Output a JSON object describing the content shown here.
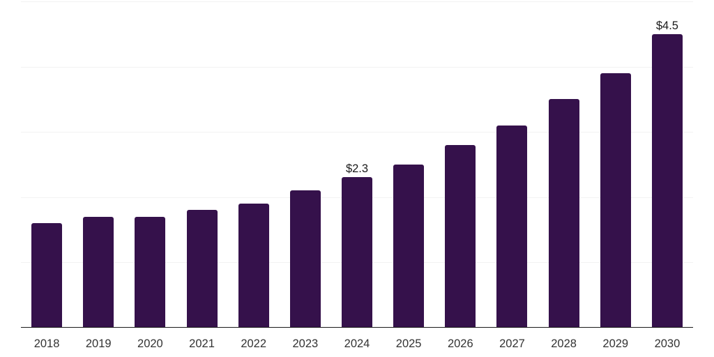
{
  "chart_data": {
    "type": "bar",
    "title": "",
    "xlabel": "",
    "ylabel": "",
    "categories": [
      "2018",
      "2019",
      "2020",
      "2021",
      "2022",
      "2023",
      "2024",
      "2025",
      "2026",
      "2027",
      "2028",
      "2029",
      "2030"
    ],
    "values": [
      1.6,
      1.7,
      1.7,
      1.8,
      1.9,
      2.1,
      2.3,
      2.5,
      2.8,
      3.1,
      3.5,
      3.9,
      4.5
    ],
    "annotations": [
      {
        "category": "2024",
        "text": "$2.3"
      },
      {
        "category": "2030",
        "text": "$4.5"
      }
    ],
    "ylim": [
      0,
      5
    ],
    "gridline_step": 1,
    "grid": true,
    "legend": false,
    "y_tick_labels_shown": false,
    "colors": {
      "bar": "#35114B",
      "gridline": "#f2f2f2",
      "axis_line": "#1a1a1a",
      "tick_label": "#333333",
      "annotation": "#1a1a1a",
      "background": "#ffffff"
    }
  }
}
